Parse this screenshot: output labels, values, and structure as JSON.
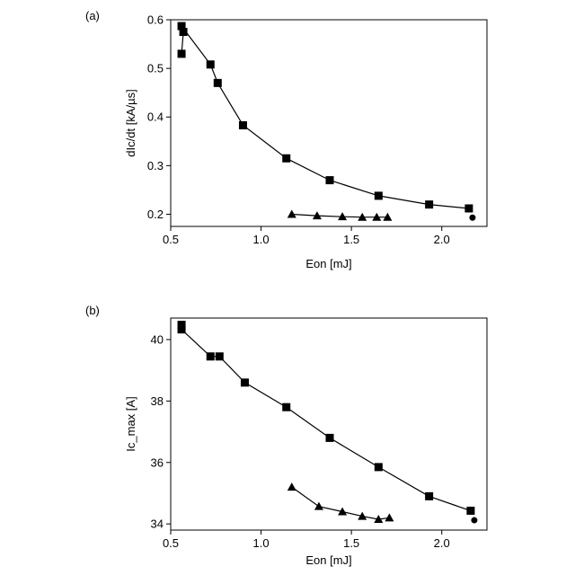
{
  "chart_data": [
    {
      "type": "scatter",
      "panel_label": "(a)",
      "xlabel": "Eon [mJ]",
      "ylabel": "dIc/dt [kA/µs]",
      "xlim": [
        0.5,
        2.25
      ],
      "ylim": [
        0.175,
        0.6
      ],
      "xticks": [
        0.5,
        1.0,
        1.5,
        2.0
      ],
      "xtick_labels": [
        "0.5",
        "1.0",
        "1.5",
        "2.0"
      ],
      "yticks": [
        0.2,
        0.3,
        0.4,
        0.5,
        0.6
      ],
      "ytick_labels": [
        "0.2",
        "0.3",
        "0.4",
        "0.5",
        "0.6"
      ],
      "grid": false,
      "series": [
        {
          "marker": "square",
          "connected": true,
          "x": [
            0.56,
            0.57,
            0.56,
            0.72,
            0.76,
            0.9,
            1.14,
            1.38,
            1.65,
            1.93,
            2.15
          ],
          "y": [
            0.53,
            0.575,
            0.587,
            0.508,
            0.47,
            0.383,
            0.315,
            0.27,
            0.238,
            0.22,
            0.212
          ]
        },
        {
          "marker": "triangle",
          "connected": true,
          "x": [
            1.17,
            1.31,
            1.45,
            1.56,
            1.64,
            1.7
          ],
          "y": [
            0.2,
            0.197,
            0.195,
            0.194,
            0.194,
            0.194
          ]
        },
        {
          "marker": "circle",
          "connected": false,
          "x": [
            2.17
          ],
          "y": [
            0.193
          ]
        }
      ]
    },
    {
      "type": "scatter",
      "panel_label": "(b)",
      "xlabel": "Eon [mJ]",
      "ylabel": "Ic_max [A]",
      "xlim": [
        0.5,
        2.25
      ],
      "ylim": [
        33.8,
        40.7
      ],
      "xticks": [
        0.5,
        1.0,
        1.5,
        2.0
      ],
      "xtick_labels": [
        "0.5",
        "1.0",
        "1.5",
        "2.0"
      ],
      "yticks": [
        34,
        36,
        38,
        40
      ],
      "ytick_labels": [
        "34",
        "36",
        "38",
        "40"
      ],
      "grid": false,
      "series": [
        {
          "marker": "square",
          "connected": true,
          "x": [
            0.56,
            0.56,
            0.72,
            0.77,
            0.91,
            1.14,
            1.38,
            1.65,
            1.93,
            2.16
          ],
          "y": [
            40.48,
            40.33,
            39.45,
            39.45,
            38.6,
            37.8,
            36.8,
            35.85,
            34.9,
            34.43
          ]
        },
        {
          "marker": "triangle",
          "connected": true,
          "x": [
            1.17,
            1.32,
            1.45,
            1.56,
            1.65,
            1.71
          ],
          "y": [
            35.2,
            34.57,
            34.4,
            34.25,
            34.15,
            34.2
          ]
        },
        {
          "marker": "circle",
          "connected": false,
          "x": [
            2.18
          ],
          "y": [
            34.12
          ]
        }
      ]
    }
  ]
}
